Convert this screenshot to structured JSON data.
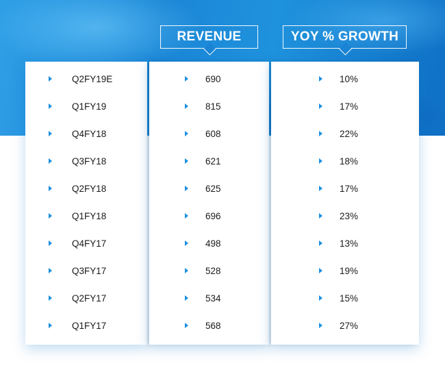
{
  "headers": {
    "revenue": "REVENUE",
    "growth": "YOY % GROWTH"
  },
  "colors": {
    "accent": "#1b8fe0",
    "hero": "#1b86d6",
    "text": "#1a1a1a"
  },
  "icons": {
    "bullet": "triangle-right-icon"
  },
  "chart_data": {
    "type": "table",
    "columns": [
      "",
      "REVENUE",
      "YOY % GROWTH"
    ],
    "rows": [
      {
        "period": "Q2FY19E",
        "revenue": "690",
        "growth": "10%"
      },
      {
        "period": "Q1FY19",
        "revenue": "815",
        "growth": "17%"
      },
      {
        "period": "Q4FY18",
        "revenue": "608",
        "growth": "22%"
      },
      {
        "period": "Q3FY18",
        "revenue": "621",
        "growth": "18%"
      },
      {
        "period": "Q2FY18",
        "revenue": "625",
        "growth": "17%"
      },
      {
        "period": "Q1FY18",
        "revenue": "696",
        "growth": "23%"
      },
      {
        "period": "Q4FY17",
        "revenue": "498",
        "growth": "13%"
      },
      {
        "period": "Q3FY17",
        "revenue": "528",
        "growth": "19%"
      },
      {
        "period": "Q2FY17",
        "revenue": "534",
        "growth": "15%"
      },
      {
        "period": "Q1FY17",
        "revenue": "568",
        "growth": "27%"
      }
    ]
  }
}
